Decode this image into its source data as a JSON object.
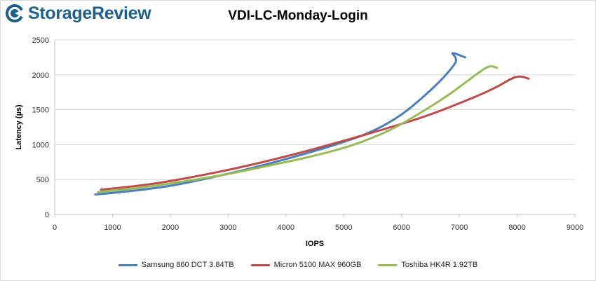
{
  "logo": {
    "text": "StorageReview",
    "icon": "storagereview-logo-icon",
    "color": "#1d5f8b"
  },
  "chart_data": {
    "type": "line",
    "title": "VDI-LC-Monday-Login",
    "xlabel": "IOPS",
    "ylabel": "Latency (µs)",
    "xlim": [
      0,
      9000
    ],
    "ylim": [
      0,
      2500
    ],
    "x_ticks": [
      "0",
      "1000",
      "2000",
      "3000",
      "4000",
      "5000",
      "6000",
      "7000",
      "8000",
      "9000"
    ],
    "y_ticks": [
      "0",
      "500",
      "1000",
      "1500",
      "2000",
      "2500"
    ],
    "grid": "horizontal",
    "legend_position": "bottom",
    "series": [
      {
        "name": "Samsung 860 DCT 3.84TB",
        "color": "#4a7ebb",
        "points": [
          [
            700,
            285
          ],
          [
            1300,
            330
          ],
          [
            2000,
            405
          ],
          [
            2700,
            525
          ],
          [
            3500,
            680
          ],
          [
            4400,
            885
          ],
          [
            5000,
            1035
          ],
          [
            5500,
            1185
          ],
          [
            6000,
            1420
          ],
          [
            6400,
            1700
          ],
          [
            6700,
            1935
          ],
          [
            6900,
            2130
          ],
          [
            6950,
            2195
          ],
          [
            6930,
            2260
          ],
          [
            6850,
            2330
          ],
          [
            7100,
            2250
          ]
        ]
      },
      {
        "name": "Micron 5100 MAX 960GB",
        "color": "#be4b48",
        "points": [
          [
            800,
            355
          ],
          [
            1500,
            410
          ],
          [
            2300,
            520
          ],
          [
            3200,
            670
          ],
          [
            4200,
            870
          ],
          [
            5000,
            1055
          ],
          [
            5700,
            1220
          ],
          [
            6400,
            1400
          ],
          [
            7000,
            1590
          ],
          [
            7600,
            1800
          ],
          [
            7900,
            1950
          ],
          [
            8050,
            1985
          ],
          [
            8200,
            1945
          ]
        ]
      },
      {
        "name": "Toshiba HK4R 1.92TB",
        "color": "#98b954",
        "points": [
          [
            750,
            320
          ],
          [
            1400,
            370
          ],
          [
            2100,
            455
          ],
          [
            2900,
            560
          ],
          [
            3800,
            715
          ],
          [
            4600,
            860
          ],
          [
            5200,
            1000
          ],
          [
            5800,
            1200
          ],
          [
            6300,
            1440
          ],
          [
            6800,
            1700
          ],
          [
            7200,
            1950
          ],
          [
            7450,
            2100
          ],
          [
            7550,
            2130
          ],
          [
            7650,
            2100
          ]
        ]
      }
    ]
  }
}
